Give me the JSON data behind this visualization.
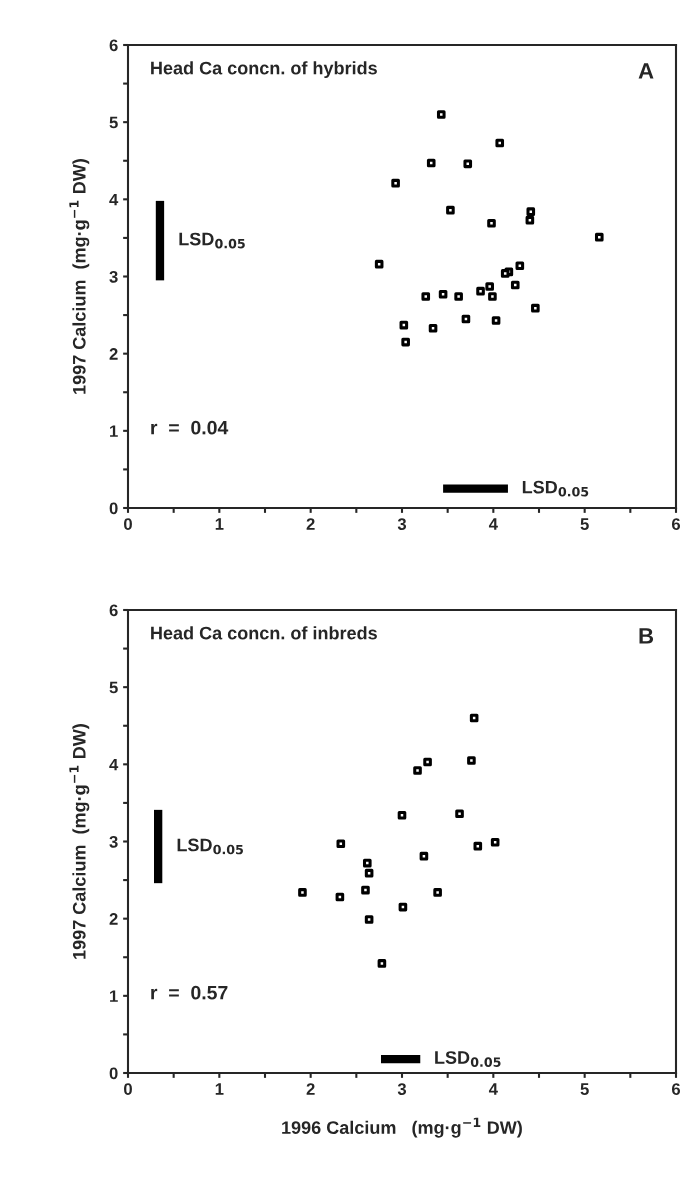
{
  "chart_data": [
    {
      "type": "scatter",
      "title": "Head Ca concn. of hybrids",
      "ylabel": "1997 Calcium  (mg·g$^{−1}$ DW)",
      "annotations": [
        "A",
        "r  =  0.04"
      ],
      "xlim": [
        0,
        6
      ],
      "ylim": [
        0,
        6
      ],
      "xticks": [
        0,
        {
          "value": 0.5,
          "label": null
        },
        1,
        {
          "value": 1.5,
          "label": null
        },
        2,
        {
          "value": 2.5,
          "label": null
        },
        3,
        {
          "value": 3.5,
          "label": null
        },
        4,
        {
          "value": 4.5,
          "label": null
        },
        5,
        {
          "value": 5.5,
          "label": null
        },
        6
      ],
      "yticks": [
        0,
        {
          "value": 0.5,
          "label": null
        },
        1,
        {
          "value": 1.5,
          "label": null
        },
        2,
        {
          "value": 2.5,
          "label": null
        },
        3,
        {
          "value": 3.5,
          "label": null
        },
        4,
        {
          "value": 4.5,
          "label": null
        },
        5,
        {
          "value": 5.5,
          "label": null
        },
        6
      ],
      "marker": "square",
      "grid": false,
      "legend": false,
      "series": [
        {
          "color": "#000000",
          "x": [
            3.43,
            4.07,
            3.32,
            3.72,
            2.93,
            3.53,
            4.41,
            4.4,
            3.98,
            5.16,
            2.75,
            4.29,
            4.17,
            4.13,
            4.24,
            3.86,
            3.96,
            3.99,
            3.26,
            3.45,
            3.62,
            4.46,
            3.7,
            4.03,
            3.02,
            3.34,
            3.04
          ],
          "values": [
            5.1,
            4.73,
            4.47,
            4.46,
            4.21,
            3.86,
            3.84,
            3.73,
            3.69,
            3.51,
            3.16,
            3.14,
            3.06,
            3.04,
            2.89,
            2.81,
            2.87,
            2.74,
            2.74,
            2.77,
            2.74,
            2.59,
            2.45,
            2.43,
            2.37,
            2.33,
            2.15
          ]
        },
        {
          "type": "line",
          "marker": "none",
          "name": "LSD$_{0.05}$",
          "color": "#000000",
          "x": [
            0.35,
            0.35
          ],
          "values": [
            2.95,
            3.98
          ]
        },
        {
          "type": "line",
          "marker": "none",
          "name": "LSD$_{0.05}$",
          "color": "#000000",
          "x": [
            3.45,
            4.16
          ],
          "values": [
            0.25,
            0.25
          ]
        }
      ]
    },
    {
      "type": "scatter",
      "title": "Head Ca concn. of inbreds",
      "xlabel": "1996 Calcium   (mg·g$^{−1}$ DW)",
      "ylabel": "1997 Calcium  (mg·g$^{−1}$ DW)",
      "annotations": [
        "B",
        "r  =  0.57"
      ],
      "xlim": [
        0,
        6
      ],
      "ylim": [
        0,
        6
      ],
      "xticks": [
        0,
        {
          "value": 0.5,
          "label": null
        },
        1,
        {
          "value": 1.5,
          "label": null
        },
        2,
        {
          "value": 2.5,
          "label": null
        },
        3,
        {
          "value": 3.5,
          "label": null
        },
        4,
        {
          "value": 4.5,
          "label": null
        },
        5,
        {
          "value": 5.5,
          "label": null
        },
        6
      ],
      "yticks": [
        0,
        {
          "value": 0.5,
          "label": null
        },
        1,
        {
          "value": 1.5,
          "label": null
        },
        2,
        {
          "value": 2.5,
          "label": null
        },
        3,
        {
          "value": 3.5,
          "label": null
        },
        4,
        {
          "value": 4.5,
          "label": null
        },
        5,
        {
          "value": 5.5,
          "label": null
        },
        6
      ],
      "marker": "square",
      "grid": false,
      "legend": false,
      "series": [
        {
          "color": "#000000",
          "x": [
            3.79,
            3.17,
            3.28,
            3.76,
            3.0,
            3.63,
            2.33,
            3.83,
            4.02,
            3.24,
            2.62,
            2.64,
            1.91,
            2.32,
            2.6,
            3.39,
            3.01,
            2.64,
            2.78
          ],
          "values": [
            4.6,
            3.92,
            4.03,
            4.05,
            3.34,
            3.36,
            2.97,
            2.94,
            2.99,
            2.81,
            2.72,
            2.59,
            2.34,
            2.28,
            2.37,
            2.34,
            2.15,
            1.99,
            1.42
          ]
        },
        {
          "type": "line",
          "marker": "none",
          "name": "LSD$_{0.05}$",
          "color": "#000000",
          "x": [
            0.33,
            0.33
          ],
          "values": [
            2.46,
            3.41
          ]
        },
        {
          "type": "line",
          "marker": "none",
          "name": "LSD$_{0.05}$",
          "color": "#000000",
          "x": [
            2.77,
            3.2
          ],
          "values": [
            0.18,
            0.18
          ]
        }
      ]
    }
  ]
}
